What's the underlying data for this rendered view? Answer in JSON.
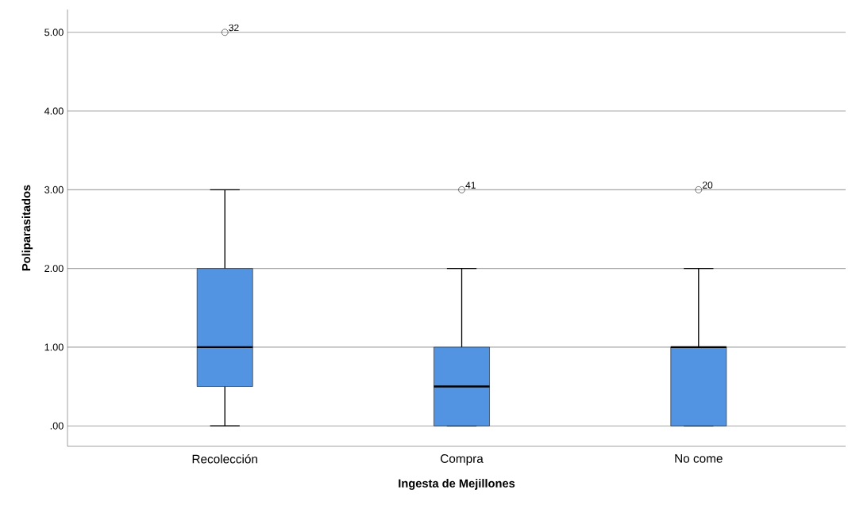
{
  "chart_data": {
    "type": "box",
    "xlabel": "Ingesta de Mejillones",
    "ylabel": "Poliparasitados",
    "categories": [
      "Recolección",
      "Compra",
      "No come"
    ],
    "boxes": [
      {
        "low": 0,
        "q1": 0.5,
        "median": 1,
        "q3": 2,
        "high": 3,
        "outliers": [
          5
        ]
      },
      {
        "low": 0,
        "q1": 0,
        "median": 0.5,
        "q3": 1,
        "high": 2,
        "outliers": [
          3
        ]
      },
      {
        "low": 0,
        "q1": 0,
        "median": 1,
        "q3": 1,
        "high": 2,
        "outliers": [
          3
        ]
      }
    ],
    "color": "#5294e2",
    "marker": "circle",
    "annotations": [
      "32",
      "41",
      "20"
    ],
    "ylim": [
      -0.26,
      5.29
    ],
    "yticks": [
      {
        "value": 0,
        "label": ".00"
      },
      {
        "value": 1,
        "label": "1.00"
      },
      {
        "value": 2,
        "label": "2.00"
      },
      {
        "value": 3,
        "label": "3.00"
      },
      {
        "value": 4,
        "label": "4.00"
      },
      {
        "value": 5,
        "label": "5.00"
      }
    ],
    "grid": "y"
  }
}
